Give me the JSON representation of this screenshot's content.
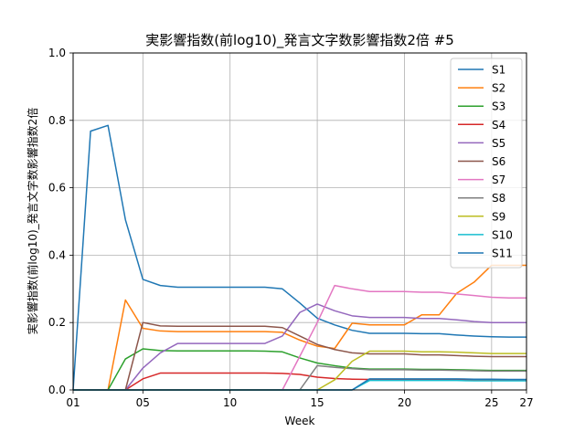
{
  "chart_data": {
    "type": "line",
    "title": "実影響指数(前log10)_発言文字数影響指数2倍 #5",
    "xlabel": "Week",
    "ylabel": "実影響指数(前log10)_発言文字数影響指数2倍",
    "xlim": [
      1,
      27
    ],
    "ylim": [
      0,
      1.0
    ],
    "xticks": [
      {
        "value": 1,
        "label": "01"
      },
      {
        "value": 5,
        "label": "05"
      },
      {
        "value": 10,
        "label": "10"
      },
      {
        "value": 15,
        "label": "15"
      },
      {
        "value": 20,
        "label": "20"
      },
      {
        "value": 25,
        "label": "25"
      },
      {
        "value": 27,
        "label": "27"
      }
    ],
    "yticks": [
      {
        "value": 0.0,
        "label": "0.0"
      },
      {
        "value": 0.2,
        "label": "0.2"
      },
      {
        "value": 0.4,
        "label": "0.4"
      },
      {
        "value": 0.6,
        "label": "0.6"
      },
      {
        "value": 0.8,
        "label": "0.8"
      },
      {
        "value": 1.0,
        "label": "1.0"
      }
    ],
    "grid": true,
    "legend_position": "top-right",
    "x": [
      1,
      2,
      3,
      4,
      5,
      6,
      7,
      8,
      9,
      10,
      11,
      12,
      13,
      14,
      15,
      16,
      17,
      18,
      19,
      20,
      21,
      22,
      23,
      24,
      25,
      26,
      27
    ],
    "series": [
      {
        "name": "S1",
        "color": "#1f77b4",
        "values": [
          0,
          0.768,
          0.785,
          0.505,
          0.328,
          0.31,
          0.305,
          0.305,
          0.305,
          0.305,
          0.305,
          0.305,
          0.3,
          0.258,
          0.213,
          0.193,
          0.177,
          0.168,
          0.168,
          0.168,
          0.167,
          0.167,
          0.163,
          0.16,
          0.158,
          0.157,
          0.157
        ]
      },
      {
        "name": "S2",
        "color": "#ff7f0e",
        "values": [
          0,
          0,
          0,
          0.267,
          0.183,
          0.175,
          0.173,
          0.173,
          0.173,
          0.173,
          0.173,
          0.173,
          0.171,
          0.148,
          0.13,
          0.123,
          0.198,
          0.193,
          0.193,
          0.193,
          0.223,
          0.223,
          0.287,
          0.32,
          0.37,
          0.37,
          0.37
        ]
      },
      {
        "name": "S3",
        "color": "#2ca02c",
        "values": [
          0,
          0,
          0,
          0.092,
          0.122,
          0.117,
          0.116,
          0.116,
          0.116,
          0.116,
          0.116,
          0.115,
          0.113,
          0.095,
          0.08,
          0.072,
          0.065,
          0.062,
          0.062,
          0.062,
          0.061,
          0.061,
          0.06,
          0.059,
          0.058,
          0.058,
          0.058
        ]
      },
      {
        "name": "S4",
        "color": "#d62728",
        "values": [
          0,
          0,
          0,
          0,
          0.033,
          0.05,
          0.05,
          0.05,
          0.05,
          0.05,
          0.05,
          0.05,
          0.049,
          0.046,
          0.038,
          0.034,
          0.032,
          0.031,
          0.031,
          0.031,
          0.031,
          0.031,
          0.031,
          0.03,
          0.03,
          0.03,
          0.03
        ]
      },
      {
        "name": "S5",
        "color": "#9467bd",
        "values": [
          0,
          0,
          0,
          0,
          0.065,
          0.11,
          0.138,
          0.138,
          0.138,
          0.138,
          0.138,
          0.138,
          0.16,
          0.23,
          0.255,
          0.235,
          0.22,
          0.215,
          0.215,
          0.215,
          0.212,
          0.212,
          0.208,
          0.203,
          0.2,
          0.2,
          0.2
        ]
      },
      {
        "name": "S6",
        "color": "#8c564b",
        "values": [
          0,
          0,
          0,
          0,
          0.2,
          0.19,
          0.189,
          0.189,
          0.189,
          0.189,
          0.189,
          0.189,
          0.185,
          0.16,
          0.135,
          0.12,
          0.11,
          0.107,
          0.107,
          0.107,
          0.104,
          0.104,
          0.102,
          0.1,
          0.099,
          0.099,
          0.099
        ]
      },
      {
        "name": "S7",
        "color": "#e377c2",
        "values": [
          0,
          0,
          0,
          0,
          0,
          0,
          0,
          0,
          0,
          0,
          0,
          0,
          0,
          0.1,
          0.2,
          0.31,
          0.3,
          0.292,
          0.292,
          0.292,
          0.29,
          0.29,
          0.285,
          0.28,
          0.275,
          0.273,
          0.273
        ]
      },
      {
        "name": "S8",
        "color": "#7f7f7f",
        "values": [
          0,
          0,
          0,
          0,
          0,
          0,
          0,
          0,
          0,
          0,
          0,
          0,
          0,
          0,
          0.072,
          0.067,
          0.063,
          0.06,
          0.06,
          0.06,
          0.059,
          0.059,
          0.058,
          0.057,
          0.056,
          0.056,
          0.056
        ]
      },
      {
        "name": "S9",
        "color": "#bcbd22",
        "values": [
          0,
          0,
          0,
          0,
          0,
          0,
          0,
          0,
          0,
          0,
          0,
          0,
          0,
          0,
          0,
          0.03,
          0.085,
          0.115,
          0.115,
          0.115,
          0.113,
          0.113,
          0.112,
          0.11,
          0.108,
          0.108,
          0.108
        ]
      },
      {
        "name": "S10",
        "color": "#17becf",
        "values": [
          0,
          0,
          0,
          0,
          0,
          0,
          0,
          0,
          0,
          0,
          0,
          0,
          0,
          0,
          0,
          0,
          0,
          0.028,
          0.028,
          0.028,
          0.028,
          0.028,
          0.028,
          0.027,
          0.027,
          0.027,
          0.027
        ]
      },
      {
        "name": "S11",
        "color": "#1f77b4",
        "values": [
          0,
          0,
          0,
          0,
          0,
          0,
          0,
          0,
          0,
          0,
          0,
          0,
          0,
          0,
          0,
          0,
          0,
          0.033,
          0.033,
          0.033,
          0.033,
          0.033,
          0.033,
          0.032,
          0.032,
          0.031,
          0.031
        ]
      }
    ]
  }
}
